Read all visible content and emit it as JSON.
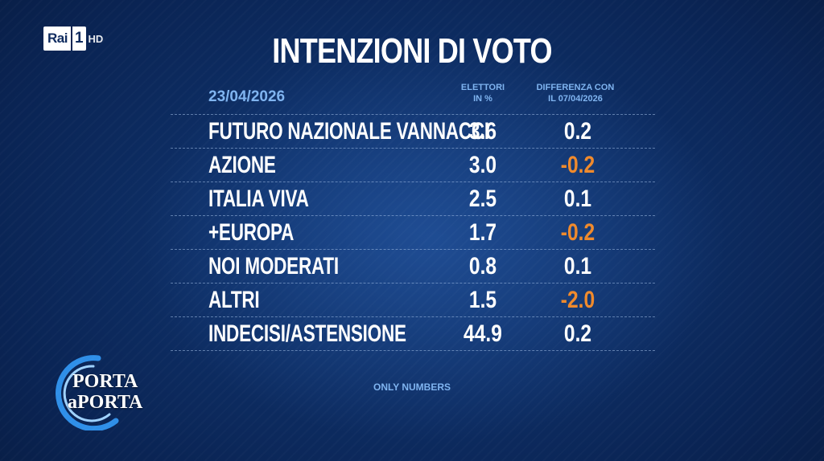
{
  "channel": {
    "name": "Rai",
    "number": "1",
    "suffix": "HD"
  },
  "title": "INTENZIONI DI VOTO",
  "header": {
    "date": "23/04/2026",
    "voters_line1": "ELETTORI",
    "voters_line2": "IN %",
    "diff_line1": "DIFFERENZA CON",
    "diff_line2": "IL 07/04/2026"
  },
  "rows": [
    {
      "party": "FUTURO NAZIONALE VANNACCI",
      "pct": "3.6",
      "diff": "0.2",
      "diff_negative": false
    },
    {
      "party": "AZIONE",
      "pct": "3.0",
      "diff": "-0.2",
      "diff_negative": true
    },
    {
      "party": "ITALIA VIVA",
      "pct": "2.5",
      "diff": "0.1",
      "diff_negative": false
    },
    {
      "party": "+EUROPA",
      "pct": "1.7",
      "diff": "-0.2",
      "diff_negative": true
    },
    {
      "party": "NOI MODERATI",
      "pct": "0.8",
      "diff": "0.1",
      "diff_negative": false
    },
    {
      "party": "ALTRI",
      "pct": "1.5",
      "diff": "-2.0",
      "diff_negative": true
    },
    {
      "party": "INDECISI/ASTENSIONE",
      "pct": "44.9",
      "diff": "0.2",
      "diff_negative": false
    }
  ],
  "footnote": "ONLY NUMBERS",
  "show_logo": {
    "line1": "PORTA",
    "line2": "aPORTA"
  },
  "colors": {
    "background": "#0a2454",
    "header_text": "#7fb4f0",
    "negative": "#f08a2c",
    "positive": "#ffffff"
  }
}
